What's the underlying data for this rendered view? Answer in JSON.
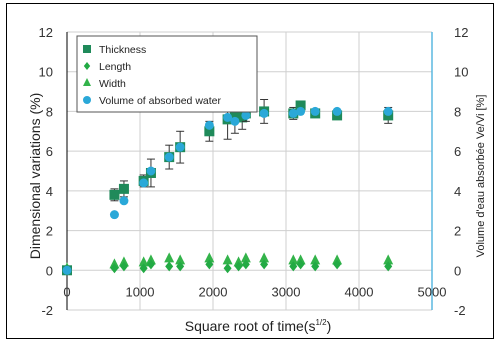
{
  "chart_data": {
    "type": "scatter",
    "xlabel": "Square root of time(s",
    "xlabel_sup": "1/2",
    "xlabel_close": ")",
    "ylabel_left": "Dimensional variations (%)",
    "ylabel_right": "Volume d'eau absorbée Ve/Vi [%]",
    "xlim": [
      0,
      5000
    ],
    "ylim": [
      -2,
      12
    ],
    "x_ticks": [
      0,
      1000,
      2000,
      3000,
      4000,
      5000
    ],
    "y_ticks": [
      -2,
      0,
      2,
      4,
      6,
      8,
      10,
      12
    ],
    "grid": true,
    "legend_position": "top-left",
    "series": [
      {
        "name": "Thickness",
        "marker": "square",
        "color": "#1f8a5a",
        "points": [
          {
            "x": 0,
            "y": 0.0
          },
          {
            "x": 650,
            "y": 3.8,
            "err": 0.3
          },
          {
            "x": 780,
            "y": 4.1,
            "err": 0.4
          },
          {
            "x": 1050,
            "y": 4.5,
            "err": 0.3
          },
          {
            "x": 1150,
            "y": 4.9,
            "err": 0.7
          },
          {
            "x": 1400,
            "y": 5.7,
            "err": 0.6
          },
          {
            "x": 1550,
            "y": 6.2,
            "err": 0.8
          },
          {
            "x": 1950,
            "y": 7.0,
            "err": 0.5
          },
          {
            "x": 2200,
            "y": 7.6,
            "err": 1.0
          },
          {
            "x": 2300,
            "y": 7.7,
            "err": 0.8
          },
          {
            "x": 2400,
            "y": 7.7,
            "err": 0.6
          },
          {
            "x": 2450,
            "y": 7.9,
            "err": 0.4
          },
          {
            "x": 2700,
            "y": 8.0,
            "err": 0.6
          },
          {
            "x": 3100,
            "y": 7.9,
            "err": 0.3
          },
          {
            "x": 3200,
            "y": 8.3,
            "err": 0.2
          },
          {
            "x": 3400,
            "y": 7.9,
            "err": 0.2
          },
          {
            "x": 3700,
            "y": 7.8,
            "err": 0.2
          },
          {
            "x": 4400,
            "y": 7.8,
            "err": 0.4
          }
        ]
      },
      {
        "name": "Length",
        "marker": "diamond",
        "color": "#22aa44",
        "points": [
          {
            "x": 0,
            "y": 0.0
          },
          {
            "x": 650,
            "y": 0.1
          },
          {
            "x": 780,
            "y": 0.2
          },
          {
            "x": 1050,
            "y": 0.1
          },
          {
            "x": 1150,
            "y": 0.3
          },
          {
            "x": 1400,
            "y": 0.2
          },
          {
            "x": 1550,
            "y": 0.2
          },
          {
            "x": 1950,
            "y": 0.3
          },
          {
            "x": 2200,
            "y": 0.1
          },
          {
            "x": 2350,
            "y": 0.2
          },
          {
            "x": 2450,
            "y": 0.3
          },
          {
            "x": 2700,
            "y": 0.3
          },
          {
            "x": 3100,
            "y": 0.2
          },
          {
            "x": 3200,
            "y": 0.3
          },
          {
            "x": 3400,
            "y": 0.2
          },
          {
            "x": 3700,
            "y": 0.3
          },
          {
            "x": 4400,
            "y": 0.2
          }
        ]
      },
      {
        "name": "Width",
        "marker": "triangle",
        "color": "#33b34a",
        "points": [
          {
            "x": 0,
            "y": 0.1
          },
          {
            "x": 650,
            "y": 0.3
          },
          {
            "x": 780,
            "y": 0.4
          },
          {
            "x": 1050,
            "y": 0.4
          },
          {
            "x": 1150,
            "y": 0.5
          },
          {
            "x": 1400,
            "y": 0.6
          },
          {
            "x": 1550,
            "y": 0.5
          },
          {
            "x": 1950,
            "y": 0.6
          },
          {
            "x": 2200,
            "y": 0.5
          },
          {
            "x": 2350,
            "y": 0.4
          },
          {
            "x": 2450,
            "y": 0.6
          },
          {
            "x": 2700,
            "y": 0.6
          },
          {
            "x": 3100,
            "y": 0.5
          },
          {
            "x": 3200,
            "y": 0.5
          },
          {
            "x": 3400,
            "y": 0.5
          },
          {
            "x": 3700,
            "y": 0.5
          },
          {
            "x": 4400,
            "y": 0.5
          }
        ]
      },
      {
        "name": "Volume of absorbed water",
        "marker": "circle",
        "color": "#2aa8d8",
        "axis": "right",
        "points": [
          {
            "x": 0,
            "y": 0.0
          },
          {
            "x": 650,
            "y": 2.8
          },
          {
            "x": 780,
            "y": 3.5
          },
          {
            "x": 1050,
            "y": 4.4
          },
          {
            "x": 1150,
            "y": 5.0
          },
          {
            "x": 1400,
            "y": 5.7
          },
          {
            "x": 1550,
            "y": 6.2
          },
          {
            "x": 1950,
            "y": 7.3
          },
          {
            "x": 2200,
            "y": 7.7
          },
          {
            "x": 2300,
            "y": 7.5
          },
          {
            "x": 2450,
            "y": 7.8
          },
          {
            "x": 2700,
            "y": 7.9
          },
          {
            "x": 3100,
            "y": 7.9
          },
          {
            "x": 3200,
            "y": 8.0
          },
          {
            "x": 3400,
            "y": 8.0
          },
          {
            "x": 3700,
            "y": 8.0
          },
          {
            "x": 4400,
            "y": 8.0
          }
        ]
      }
    ]
  }
}
